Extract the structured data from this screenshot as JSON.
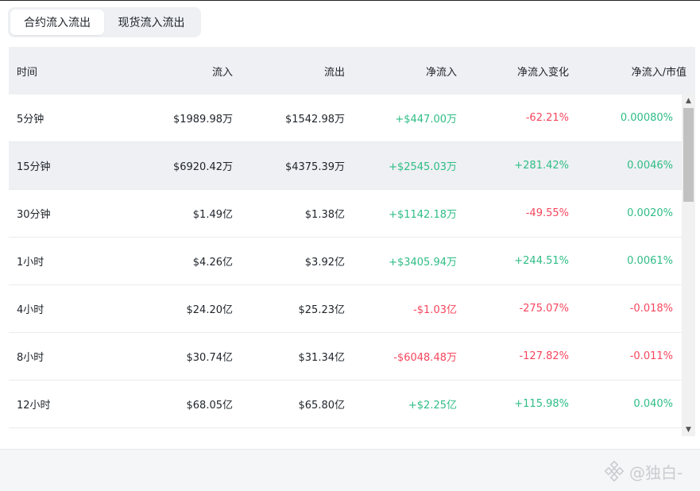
{
  "tabs": [
    {
      "label": "合约流入流出",
      "active": true
    },
    {
      "label": "现货流入流出",
      "active": false
    }
  ],
  "columns": [
    "时间",
    "流入",
    "流出",
    "净流入",
    "净流入变化",
    "净流入/市值"
  ],
  "rows": [
    {
      "time": "5分钟",
      "inflow": "$1989.98万",
      "outflow": "$1542.98万",
      "net": "+$447.00万",
      "net_sign": "pos",
      "change": "-62.21%",
      "change_sign": "neg",
      "ratio": "0.00080%",
      "ratio_sign": "pos"
    },
    {
      "time": "15分钟",
      "inflow": "$6920.42万",
      "outflow": "$4375.39万",
      "net": "+$2545.03万",
      "net_sign": "pos",
      "change": "+281.42%",
      "change_sign": "pos",
      "ratio": "0.0046%",
      "ratio_sign": "pos"
    },
    {
      "time": "30分钟",
      "inflow": "$1.49亿",
      "outflow": "$1.38亿",
      "net": "+$1142.18万",
      "net_sign": "pos",
      "change": "-49.55%",
      "change_sign": "neg",
      "ratio": "0.0020%",
      "ratio_sign": "pos"
    },
    {
      "time": "1小时",
      "inflow": "$4.26亿",
      "outflow": "$3.92亿",
      "net": "+$3405.94万",
      "net_sign": "pos",
      "change": "+244.51%",
      "change_sign": "pos",
      "ratio": "0.0061%",
      "ratio_sign": "pos"
    },
    {
      "time": "4小时",
      "inflow": "$24.20亿",
      "outflow": "$25.23亿",
      "net": "-$1.03亿",
      "net_sign": "neg",
      "change": "-275.07%",
      "change_sign": "neg",
      "ratio": "-0.018%",
      "ratio_sign": "neg"
    },
    {
      "time": "8小时",
      "inflow": "$30.74亿",
      "outflow": "$31.34亿",
      "net": "-$6048.48万",
      "net_sign": "neg",
      "change": "-127.82%",
      "change_sign": "neg",
      "ratio": "-0.011%",
      "ratio_sign": "neg"
    },
    {
      "time": "12小时",
      "inflow": "$68.05亿",
      "outflow": "$65.80亿",
      "net": "+$2.25亿",
      "net_sign": "pos",
      "change": "+115.98%",
      "change_sign": "pos",
      "ratio": "0.040%",
      "ratio_sign": "pos"
    }
  ],
  "highlighted_row": 1,
  "scrollbar": {
    "up_icon": "▲",
    "down_icon": "▼"
  },
  "watermark": {
    "text": "@独白-"
  },
  "colors": {
    "positive": "#2ebd85",
    "negative": "#f6465d",
    "header_bg": "#eef0f3"
  }
}
